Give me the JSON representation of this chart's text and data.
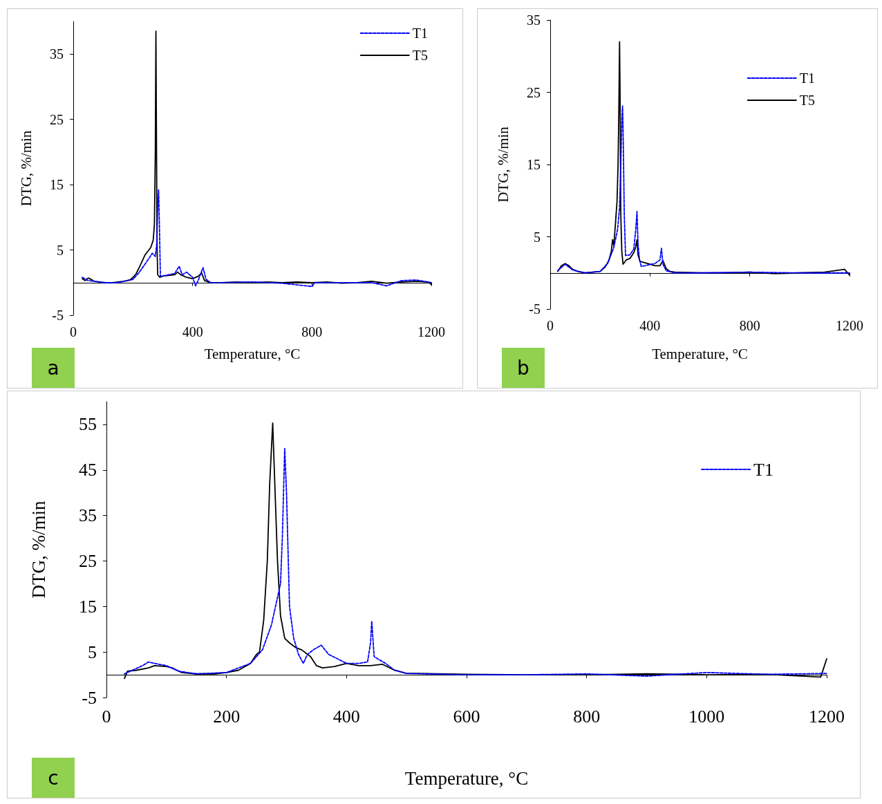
{
  "chart_data": [
    {
      "type": "line",
      "xlabel": "Temperature, °C",
      "ylabel": "DTG, %/min",
      "annotations": [
        "a"
      ],
      "legend": "top right",
      "xlim": [
        0,
        1200
      ],
      "xticks": [
        0,
        400,
        800,
        1200
      ],
      "ylim": [
        -5,
        40
      ],
      "yticks": [
        -5,
        5,
        15,
        25,
        35
      ],
      "series": [
        {
          "name": "T1",
          "color": "#0000ff",
          "line_style": "dashed",
          "x": [
            30,
            50,
            70,
            100,
            150,
            200,
            220,
            240,
            255,
            265,
            275,
            280,
            283,
            286,
            289,
            292,
            300,
            320,
            340,
            355,
            365,
            380,
            400,
            410,
            420,
            435,
            445,
            460,
            500,
            600,
            700,
            800,
            810,
            900,
            1000,
            1050,
            1100,
            1150,
            1200
          ],
          "values": [
            0.8,
            0.3,
            0.2,
            0,
            0,
            0.5,
            1.5,
            2.8,
            3.8,
            4.5,
            4,
            6,
            12,
            14.2,
            8,
            1,
            1,
            1.2,
            1.4,
            2.5,
            1.2,
            1.6,
            0.8,
            -0.5,
            0.5,
            2.3,
            0.5,
            0,
            0,
            0.1,
            -0.1,
            -0.6,
            0,
            0,
            0,
            -0.5,
            0.3,
            0.4,
            0
          ]
        },
        {
          "name": "T5",
          "color": "#000000",
          "line_style": "solid",
          "x": [
            30,
            40,
            50,
            60,
            70,
            90,
            110,
            130,
            150,
            170,
            190,
            200,
            210,
            220,
            230,
            240,
            250,
            260,
            268,
            272,
            275,
            277,
            279,
            281,
            283,
            290,
            300,
            320,
            340,
            350,
            360,
            380,
            400,
            420,
            430,
            440,
            460,
            500,
            550,
            600,
            650,
            700,
            750,
            800,
            850,
            900,
            950,
            1000,
            1050,
            1100,
            1150,
            1190,
            1200
          ],
          "values": [
            0.6,
            0.3,
            0.7,
            0.5,
            0.2,
            0.1,
            0,
            0,
            0.1,
            0.2,
            0.4,
            0.8,
            1.3,
            2.2,
            3.2,
            4.2,
            4.8,
            5.4,
            6.5,
            9,
            20,
            38.5,
            20,
            5,
            1.2,
            0.8,
            1,
            1.1,
            1.2,
            1.6,
            1.2,
            0.8,
            0.6,
            1,
            1.5,
            0.3,
            0,
            0,
            0.1,
            0,
            0.1,
            0,
            0.1,
            0,
            0.1,
            -0.1,
            0,
            0.2,
            -0.1,
            0.1,
            0.2,
            0.1,
            -0.3
          ]
        }
      ]
    },
    {
      "type": "line",
      "xlabel": "Temperature, °C",
      "ylabel": "DTG, %/min",
      "annotations": [
        "b"
      ],
      "legend": "top right",
      "xlim": [
        0,
        1200
      ],
      "xticks": [
        0,
        400,
        800,
        1200
      ],
      "ylim": [
        -5,
        35
      ],
      "yticks": [
        -5,
        5,
        15,
        25,
        35
      ],
      "series": [
        {
          "name": "T1",
          "color": "#0000ff",
          "line_style": "dashed",
          "x": [
            30,
            60,
            90,
            140,
            200,
            230,
            255,
            270,
            278,
            283,
            287,
            290,
            293,
            297,
            302,
            320,
            335,
            343,
            348,
            352,
            358,
            365,
            380,
            420,
            440,
            446,
            452,
            465,
            500,
            600,
            800,
            1000,
            1200
          ],
          "values": [
            0.3,
            1.2,
            0.4,
            0,
            0.2,
            1.3,
            3.5,
            6,
            9,
            15,
            21,
            23.1,
            18,
            8,
            2.4,
            2.5,
            3.3,
            6,
            8.5,
            4,
            1.8,
            0.9,
            1,
            1.3,
            1.8,
            3.4,
            1.2,
            0.3,
            0,
            0,
            0.1,
            0,
            0
          ]
        },
        {
          "name": "T5",
          "color": "#000000",
          "line_style": "solid",
          "x": [
            30,
            45,
            60,
            75,
            90,
            110,
            140,
            170,
            200,
            220,
            235,
            245,
            250,
            255,
            262,
            268,
            272,
            275,
            278,
            280,
            283,
            287,
            292,
            305,
            320,
            335,
            342,
            348,
            352,
            360,
            380,
            400,
            420,
            440,
            452,
            465,
            480,
            500,
            600,
            700,
            800,
            900,
            1000,
            1100,
            1180,
            1200
          ],
          "values": [
            0.2,
            1,
            1.3,
            1,
            0.5,
            0.2,
            0,
            0.1,
            0.2,
            0.8,
            1.7,
            3,
            4.6,
            3.8,
            7,
            10,
            15,
            22,
            32,
            25,
            8,
            3,
            1.2,
            1.8,
            2,
            2.8,
            3.5,
            4.6,
            2.5,
            1.6,
            1.4,
            1.2,
            1,
            1,
            1.7,
            0.6,
            0.2,
            0.1,
            0,
            0,
            0.1,
            -0.1,
            0,
            0.1,
            0.5,
            -0.3
          ]
        }
      ]
    },
    {
      "type": "line",
      "xlabel": "Temperature, °C",
      "ylabel": "DTG, %/min",
      "annotations": [
        "c"
      ],
      "legend": "top right",
      "xlim": [
        0,
        1200
      ],
      "xticks": [
        0,
        200,
        400,
        600,
        800,
        1000,
        1200
      ],
      "ylim": [
        -5,
        60
      ],
      "yticks": [
        -5,
        5,
        15,
        25,
        35,
        45,
        55
      ],
      "series": [
        {
          "name": "T1",
          "color": "#0000ff",
          "line_style": "dashed",
          "x": [
            30,
            40,
            60,
            70,
            80,
            100,
            120,
            150,
            200,
            240,
            260,
            275,
            285,
            290,
            293,
            297,
            300,
            305,
            312,
            320,
            328,
            335,
            345,
            358,
            370,
            385,
            400,
            420,
            435,
            440,
            442,
            446,
            452,
            465,
            480,
            500,
            600,
            700,
            800,
            900,
            1000,
            1100,
            1200
          ],
          "values": [
            0.2,
            0.8,
            2,
            2.8,
            2.5,
            2,
            0.8,
            0.2,
            0.5,
            2.5,
            5.5,
            11,
            17,
            20,
            30,
            49.7,
            40,
            15,
            8,
            4.5,
            2.5,
            4.5,
            5.5,
            6.5,
            4.5,
            3.5,
            2.5,
            2.5,
            2.8,
            7,
            11.8,
            4,
            3.5,
            2.5,
            1,
            0.3,
            0,
            0,
            0.2,
            -0.3,
            0.5,
            0.1,
            0.3
          ]
        },
        {
          "color": "#000000",
          "line_style": "solid",
          "x": [
            30,
            35,
            50,
            70,
            80,
            100,
            110,
            125,
            150,
            180,
            200,
            220,
            240,
            250,
            255,
            262,
            268,
            272,
            277,
            281,
            285,
            290,
            297,
            305,
            315,
            325,
            340,
            350,
            360,
            380,
            400,
            420,
            440,
            460,
            480,
            500,
            520,
            600,
            700,
            800,
            900,
            1000,
            1100,
            1190,
            1200
          ],
          "values": [
            -0.8,
            0.8,
            1,
            1.5,
            2,
            1.8,
            1.5,
            0.5,
            0.2,
            0.2,
            0.5,
            1,
            2.5,
            4.5,
            5,
            12,
            25,
            42,
            55.3,
            40,
            25,
            13,
            8,
            7,
            6,
            5.5,
            4,
            2,
            1.5,
            1.8,
            2.5,
            2,
            2,
            2.3,
            1,
            0.3,
            0.3,
            0.1,
            0,
            0,
            0.2,
            0,
            0.1,
            -0.5,
            3.5
          ]
        }
      ]
    }
  ]
}
